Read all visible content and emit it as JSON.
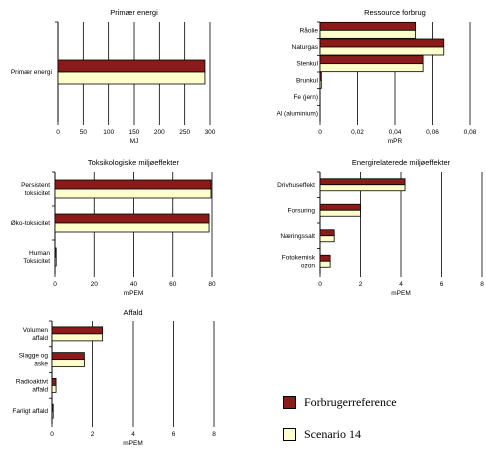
{
  "colors": {
    "forbruger": "#8b1a1a",
    "scenario": "#ffffcc",
    "axis": "#000000",
    "grid": "#000000"
  },
  "legend": {
    "items": [
      {
        "label": "Forbrugerreference",
        "color": "#8b1a1a"
      },
      {
        "label": "Scenario 14",
        "color": "#ffffcc"
      }
    ]
  },
  "chart_data": [
    {
      "id": "primaer",
      "type": "bar",
      "orientation": "horizontal",
      "title": "Primær energi",
      "xlabel": "MJ",
      "xlim": [
        0,
        300
      ],
      "ticks": [
        "0",
        "50",
        "100",
        "150",
        "200",
        "250",
        "300"
      ],
      "tick_values": [
        0,
        50,
        100,
        150,
        200,
        250,
        300
      ],
      "categories": [
        "Primær energi"
      ],
      "series": [
        {
          "name": "Forbrugerreference",
          "values": [
            290
          ]
        },
        {
          "name": "Scenario 14",
          "values": [
            290
          ]
        }
      ]
    },
    {
      "id": "ressource",
      "type": "bar",
      "orientation": "horizontal",
      "title": "Ressource forbrug",
      "xlabel": "mPR",
      "xlim": [
        0,
        0.08
      ],
      "ticks": [
        "0",
        "0,02",
        "0,04",
        "0,06",
        "0,08"
      ],
      "tick_values": [
        0,
        0.02,
        0.04,
        0.06,
        0.08
      ],
      "categories": [
        "Råolie",
        "Naturgas",
        "Stenkul",
        "Brunkul",
        "Fe (jern)",
        "Al (aluminium)"
      ],
      "series": [
        {
          "name": "Forbrugerreference",
          "values": [
            0.051,
            0.066,
            0.055,
            0.0007,
            0,
            0
          ]
        },
        {
          "name": "Scenario 14",
          "values": [
            0.051,
            0.066,
            0.055,
            0.0007,
            0,
            0
          ]
        }
      ]
    },
    {
      "id": "toksiko",
      "type": "bar",
      "orientation": "horizontal",
      "title": "Toksikologiske miljøeffekter",
      "xlabel": "mPEM",
      "xlim": [
        0,
        80
      ],
      "ticks": [
        "0",
        "20",
        "40",
        "60",
        "80"
      ],
      "tick_values": [
        0,
        20,
        40,
        60,
        80
      ],
      "categories": [
        "Persistent\ntoksicitet",
        "Øko-toksicitet",
        "Human\nToksicitet"
      ],
      "series": [
        {
          "name": "Forbrugerreference",
          "values": [
            79.5,
            78.5,
            0.4
          ]
        },
        {
          "name": "Scenario 14",
          "values": [
            79.5,
            78.5,
            0.4
          ]
        }
      ]
    },
    {
      "id": "energi",
      "type": "bar",
      "orientation": "horizontal",
      "title": "Energirelaterede miljøeffekter",
      "xlabel": "mPEM",
      "xlim": [
        0,
        8
      ],
      "ticks": [
        "0",
        "2",
        "4",
        "6",
        "8"
      ],
      "tick_values": [
        0,
        2,
        4,
        6,
        8
      ],
      "categories": [
        "Drivhuseffekt",
        "Forsuring",
        "Næringssalt",
        "Fotokemisk\nozon"
      ],
      "series": [
        {
          "name": "Forbrugerreference",
          "values": [
            4.2,
            2.0,
            0.7,
            0.5
          ]
        },
        {
          "name": "Scenario 14",
          "values": [
            4.2,
            2.0,
            0.7,
            0.5
          ]
        }
      ]
    },
    {
      "id": "affald",
      "type": "bar",
      "orientation": "horizontal",
      "title": "Affald",
      "xlabel": "mPEM",
      "xlim": [
        0,
        8
      ],
      "ticks": [
        "0",
        "2",
        "4",
        "6",
        "8"
      ],
      "tick_values": [
        0,
        2,
        4,
        6,
        8
      ],
      "categories": [
        "Volumen\naffald",
        "Slagge og\naske",
        "Radioaktivt\naffald",
        "Farligt affald"
      ],
      "series": [
        {
          "name": "Forbrugerreference",
          "values": [
            2.5,
            1.6,
            0.2,
            0.05
          ]
        },
        {
          "name": "Scenario 14",
          "values": [
            2.5,
            1.6,
            0.2,
            0.05
          ]
        }
      ]
    }
  ]
}
